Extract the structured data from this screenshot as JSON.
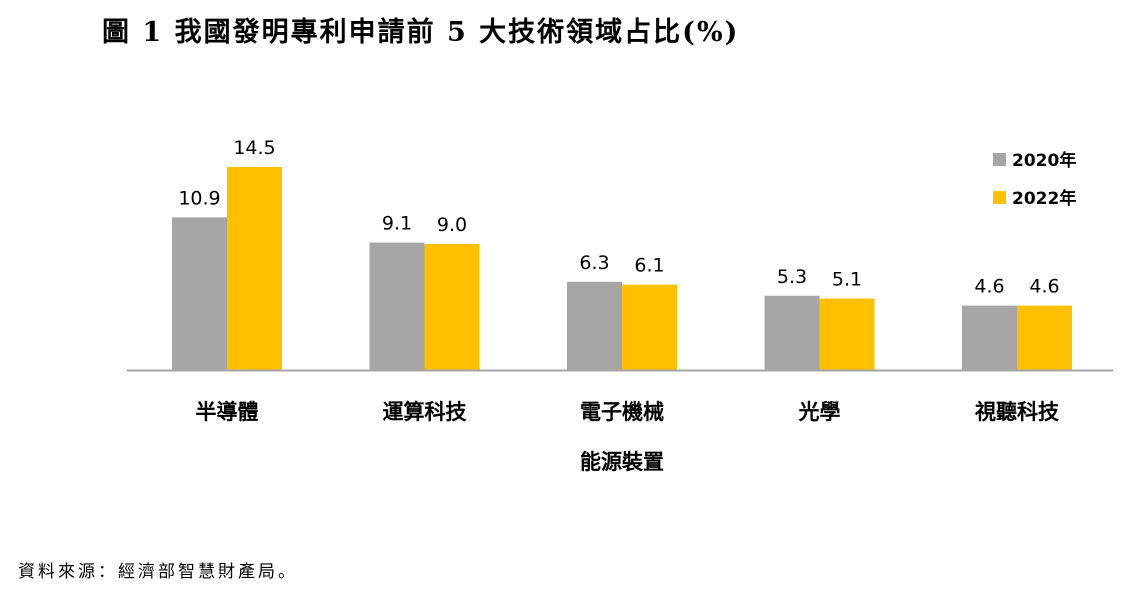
{
  "page": {
    "title": "圖 1 我國發明專利申請前 5 大技術領域占比(%)",
    "source": "資料來源：經濟部智慧財產局。"
  },
  "chart_data": {
    "type": "bar",
    "title": "圖 1 我國發明專利申請前 5 大技術領域占比(%)",
    "categories": [
      [
        "半導體"
      ],
      [
        "運算科技"
      ],
      [
        "電子機械",
        "能源裝置"
      ],
      [
        "光學"
      ],
      [
        "視聽科技"
      ]
    ],
    "series": [
      {
        "name": "2020年",
        "color": "#A6A6A6",
        "values": [
          10.9,
          9.1,
          6.3,
          5.3,
          4.6
        ]
      },
      {
        "name": "2022年",
        "color": "#FFC000",
        "values": [
          14.5,
          9.0,
          6.1,
          5.1,
          4.6
        ]
      }
    ],
    "value_labels": [
      [
        "10.9",
        "9.1",
        "6.3",
        "5.3",
        "4.6"
      ],
      [
        "14.5",
        "9.0",
        "6.1",
        "5.1",
        "4.6"
      ]
    ],
    "ylim": [
      0,
      14.5
    ],
    "xlabel": "",
    "ylabel": "",
    "legend_position": "top-right",
    "grid": false,
    "axis_color": "#A6A6A6"
  }
}
